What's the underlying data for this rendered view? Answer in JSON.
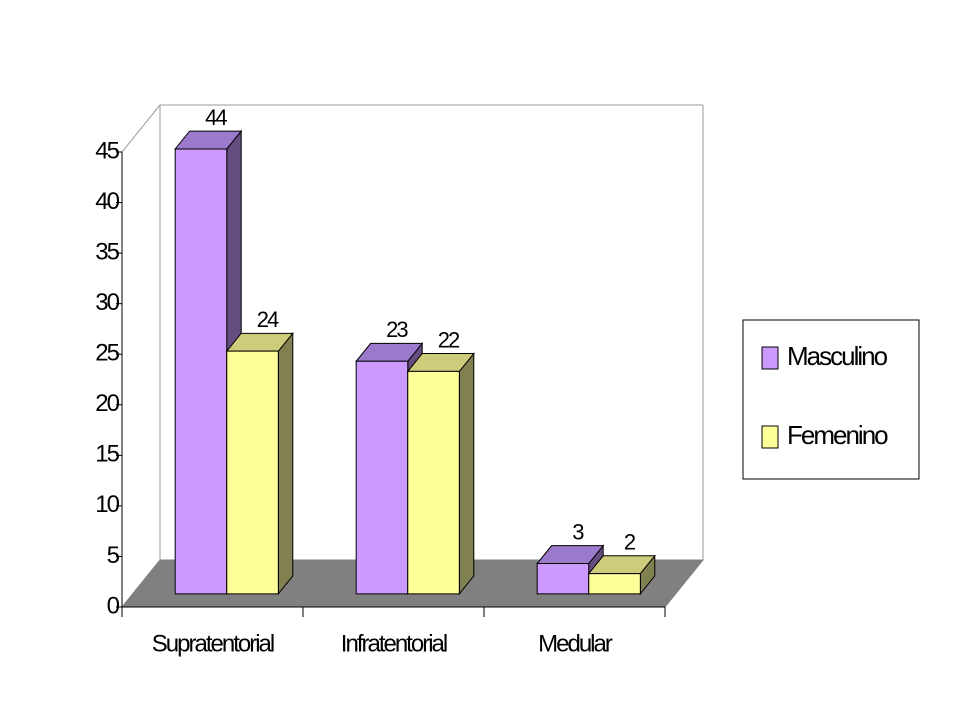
{
  "chart_data": {
    "type": "bar3d",
    "categories": [
      "Supratentorial",
      "Infratentorial",
      "Medular"
    ],
    "series": [
      {
        "name": "Masculino",
        "color": "#cc99ff",
        "values": [
          44,
          23,
          3
        ]
      },
      {
        "name": "Femenino",
        "color": "#ffff99",
        "values": [
          24,
          22,
          2
        ]
      }
    ],
    "ylim": [
      0,
      45
    ],
    "yticks": [
      0,
      5,
      10,
      15,
      20,
      25,
      30,
      35,
      40,
      45
    ],
    "legend": "right"
  }
}
